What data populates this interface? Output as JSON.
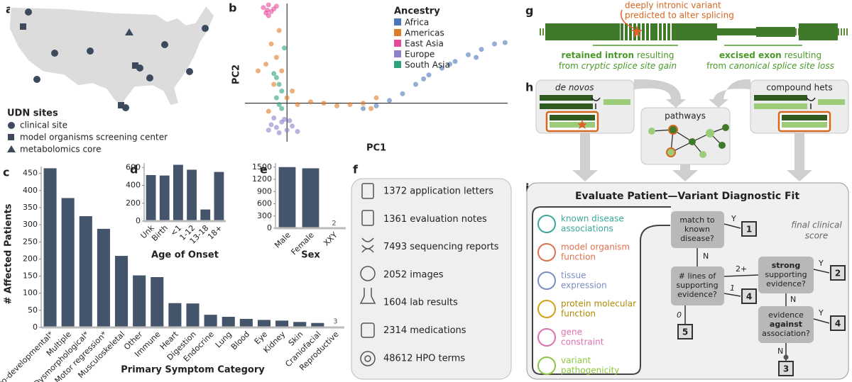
{
  "panel_labels": [
    "a",
    "b",
    "c",
    "d",
    "e",
    "f",
    "g",
    "h",
    "i"
  ],
  "map": {
    "legend_title": "UDN sites",
    "legend": [
      "clinical site",
      "model organisms screening center",
      "metabolomics core"
    ]
  },
  "resources": [
    "1372 application letters",
    "1361 evaluation notes",
    "7493 sequencing reports",
    "2052 images",
    "1604 lab results",
    "2314 medications",
    "48612 HPO terms"
  ],
  "splicing": {
    "variant": [
      "deeply intronic variant",
      "predicted to alter splicing"
    ],
    "left": {
      "bold": "retained intron",
      "rest": "resulting",
      "from": "from",
      "italic": "cryptic splice site gain"
    },
    "right": {
      "bold": "excised exon",
      "rest": "resulting",
      "from": "from",
      "italic": "canonical splice site loss"
    }
  },
  "inputs": {
    "de_novo": "de novos",
    "pathways": "pathways",
    "compound": "compound hets"
  },
  "fit": {
    "title": "Evaluate Patient—Variant Diagnostic Fit",
    "features": [
      [
        "known disease",
        "associations"
      ],
      [
        "model organism",
        "function"
      ],
      [
        "tissue",
        "expression"
      ],
      [
        "protein molecular",
        "function"
      ],
      [
        "gene",
        "constraint"
      ],
      [
        "variant",
        "pathogenicity"
      ]
    ],
    "q1": [
      "match to",
      "known",
      "disease?"
    ],
    "q2": [
      "# lines of",
      "supporting",
      "evidence?"
    ],
    "q3": [
      "strong",
      "supporting",
      "evidence?"
    ],
    "q4": [
      "evidence",
      "against",
      "association?"
    ],
    "edges": [
      "Y",
      "N",
      "2+",
      "1",
      "0",
      "Y",
      "N",
      "Y",
      "N"
    ],
    "scores": [
      "1",
      "4",
      "5",
      "2",
      "4",
      "3"
    ],
    "score_note": [
      "final clinical",
      "score"
    ]
  },
  "chart_data": [
    {
      "type": "scatter",
      "legend_title": "Ancestry",
      "legend": "upper right",
      "xlabel": "PC1",
      "ylabel": "PC2",
      "xlim": [
        -16,
        84
      ],
      "ylim": [
        -26,
        74
      ],
      "series": [
        {
          "name": "Africa",
          "color": "#4a78b8",
          "x": [
            29,
            34,
            39,
            44,
            49,
            54,
            59,
            64,
            69,
            74,
            79,
            83,
            72,
            62,
            52
          ],
          "y": [
            -4,
            -2,
            2,
            7,
            14,
            21,
            26,
            31,
            36,
            40,
            44,
            45,
            34,
            29,
            18
          ]
        },
        {
          "name": "Americas",
          "color": "#e07b28",
          "x": [
            -6,
            -4,
            -8,
            -2,
            -5,
            0,
            4,
            9,
            14,
            19,
            24,
            29,
            34,
            32,
            -11,
            -3,
            -7,
            2
          ],
          "y": [
            44,
            34,
            29,
            24,
            14,
            4,
            -1,
            1,
            0,
            -2,
            -1,
            0,
            4,
            -4,
            24,
            54,
            -6,
            9
          ]
        },
        {
          "name": "East Asia",
          "color": "#e64a9a",
          "x": [
            -9,
            -7,
            -5,
            -8,
            -6,
            -4,
            -7,
            -7.5
          ],
          "y": [
            71,
            73,
            70,
            67,
            68,
            72,
            65,
            69
          ]
        },
        {
          "name": "Europe",
          "color": "#8a80cc",
          "x": [
            -6,
            -4,
            -2,
            0,
            2,
            -5,
            -3,
            -1,
            -7,
            1,
            4
          ],
          "y": [
            -16,
            -18,
            -14,
            -20,
            -17,
            -11,
            -22,
            -12,
            -20,
            -13,
            -21
          ]
        },
        {
          "name": "South Asia",
          "color": "#2aa37a",
          "x": [
            -4,
            -3,
            -2,
            -4,
            -3,
            -5,
            -2,
            -1
          ],
          "y": [
            19,
            14,
            9,
            4,
            -1,
            22,
            -4,
            41
          ]
        }
      ]
    },
    {
      "type": "bar",
      "color": "#44546a",
      "xlabel": "Primary Symptom Category",
      "ylabel": "# Affected Patients",
      "categories": [
        "Neuro-developmental*",
        "Multiple",
        "Dysmorphological*",
        "Motor regression*",
        "Musculoskeletal",
        "Other",
        "Immune",
        "Heart",
        "Digestion",
        "Endocrine",
        "Lung",
        "Blood",
        "Eye",
        "Kidney",
        "Skin",
        "Craniofacial",
        "Reproductive"
      ],
      "values": [
        465,
        378,
        325,
        288,
        209,
        152,
        147,
        71,
        70,
        37,
        31,
        25,
        22,
        20,
        16,
        13,
        3
      ],
      "value_labels": [
        null,
        null,
        null,
        null,
        null,
        null,
        null,
        null,
        null,
        null,
        null,
        null,
        null,
        null,
        null,
        null,
        "3"
      ],
      "ylim": [
        0,
        470
      ],
      "yticks": [
        0,
        50,
        100,
        150,
        200,
        250,
        300,
        350,
        400,
        450
      ]
    },
    {
      "type": "bar",
      "color": "#44546a",
      "xlabel": "Age of Onset",
      "categories": [
        "Unk",
        "Birth",
        "<1",
        "1-12",
        "13-18",
        "18+"
      ],
      "values": [
        515,
        510,
        630,
        575,
        130,
        550
      ],
      "ylim": [
        0,
        650
      ],
      "yticks": [
        0,
        200,
        400,
        600
      ]
    },
    {
      "type": "bar",
      "color": "#44546a",
      "xlabel": "Sex",
      "categories": [
        "Male",
        "Female",
        "XXY"
      ],
      "values": [
        1500,
        1470,
        2
      ],
      "value_labels": [
        null,
        null,
        "2"
      ],
      "ylim": [
        0,
        1600
      ],
      "yticks": [
        0,
        300,
        600,
        900,
        1200,
        1500
      ]
    }
  ]
}
